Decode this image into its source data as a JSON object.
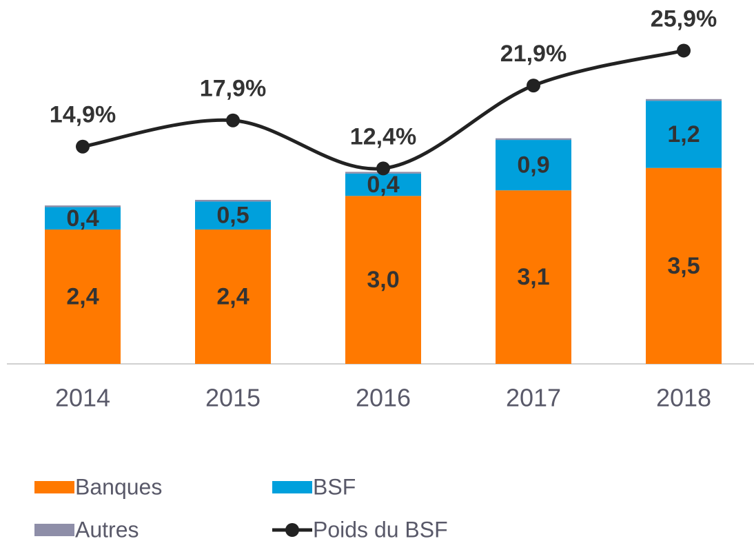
{
  "chart_data": {
    "type": "bar",
    "stacked": true,
    "categories": [
      "2014",
      "2015",
      "2016",
      "2017",
      "2018"
    ],
    "ylim": [
      0,
      6.5
    ],
    "y2lim": [
      -10,
      31.7
    ],
    "series": [
      {
        "name": "Banques",
        "color": "#ff7900",
        "values": [
          2.4,
          2.4,
          3.0,
          3.1,
          3.5
        ],
        "value_labels": [
          "2,4",
          "2,4",
          "3,0",
          "3,1",
          "3,5"
        ]
      },
      {
        "name": "BSF",
        "color": "#00a0dc",
        "values": [
          0.4,
          0.5,
          0.4,
          0.9,
          1.2
        ],
        "value_labels": [
          "0,4",
          "0,5",
          "0,4",
          "0,9",
          "1,2"
        ]
      },
      {
        "name": "Autres",
        "color": "#8e8ea8",
        "values": [
          0.03,
          0.03,
          0.03,
          0.03,
          0.03
        ]
      },
      {
        "name": "Poids du BSF",
        "type": "line",
        "axis": "y2",
        "color": "#222222",
        "values": [
          14.9,
          17.9,
          12.4,
          21.9,
          25.9
        ],
        "value_labels": [
          "14,9%",
          "17,9%",
          "12,4%",
          "21,9%",
          "25,9%"
        ]
      }
    ]
  }
}
